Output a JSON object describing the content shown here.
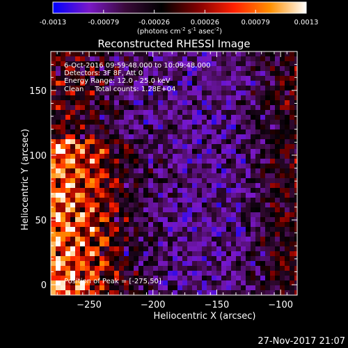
{
  "colorbar": {
    "ticks": [
      "-0.0013",
      "-0.00079",
      "-0.00026",
      "0.00026",
      "0.00079",
      "0.0013"
    ],
    "units_prefix": "(photons cm",
    "units_exp1": "-2",
    "units_mid": " s",
    "units_exp2": "-1",
    "units_mid2": " asec",
    "units_exp3": "-2",
    "units_suffix": ")",
    "colors": [
      "#0000ff",
      "#7a18c8",
      "#3a0a3a",
      "#000000",
      "#800000",
      "#ff2000",
      "#ff9000",
      "#ffffff"
    ]
  },
  "annotations": {
    "line1": "6-Oct-2016 09:59:48.000 to 10:09:48.000",
    "line2": "Detectors: 3F 8F, Att 0",
    "line3": "Energy Range: 12.0 - 25.0 keV",
    "line4": "Clean     Total counts: 1.28E+04",
    "peak": "Position of Peak = [-275,50]"
  },
  "timestamp": "27-Nov-2017 21:07",
  "chart_data": {
    "type": "heatmap",
    "title": "Reconstructed RHESSI Image",
    "xlabel": "Heliocentric X (arcsec)",
    "ylabel": "Heliocentric Y (arcsec)",
    "xlim": [
      -280,
      -87
    ],
    "ylim": [
      -8,
      180
    ],
    "xticks": [
      -250,
      -200,
      -150,
      -100
    ],
    "yticks": [
      0,
      50,
      100,
      150
    ],
    "xtick_labels": [
      "−250",
      "−200",
      "−150",
      "−100"
    ],
    "ytick_labels": [
      "0",
      "50",
      "100",
      "150"
    ],
    "value_range": [
      -0.0013,
      0.0013
    ],
    "peak_position": [
      -275,
      50
    ]
  }
}
